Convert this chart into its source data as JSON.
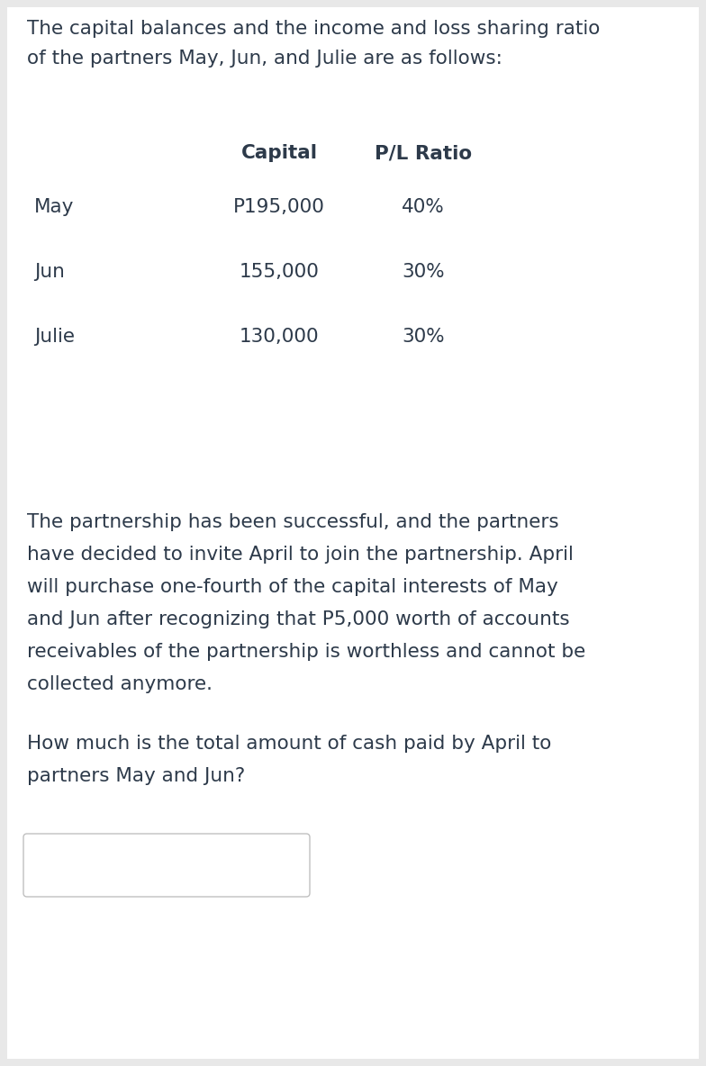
{
  "bg_color": "#e8e8e8",
  "card_color": "#ffffff",
  "text_color": "#2d3a4a",
  "header_line1": "The capital balances and the income and loss sharing ratio",
  "header_line2": "of the partners May, Jun, and Julie are as follows:",
  "col_header_capital": "Capital",
  "col_header_pl": "P/L Ratio",
  "partners": [
    "May",
    "Jun",
    "Julie"
  ],
  "capitals": [
    "P195,000",
    "155,000",
    "130,000"
  ],
  "pl_ratios": [
    "40%",
    "30%",
    "30%"
  ],
  "paragraph1_lines": [
    "The partnership has been successful, and the partners",
    "have decided to invite April to join the partnership. April",
    "will purchase one-fourth of the capital interests of May",
    "and Jun after recognizing that P5,000 worth of accounts",
    "receivables of the partnership is worthless and cannot be",
    "collected anymore."
  ],
  "paragraph2_lines": [
    "How much is the total amount of cash paid by April to",
    "partners May and Jun?"
  ],
  "font_size": 15.5
}
